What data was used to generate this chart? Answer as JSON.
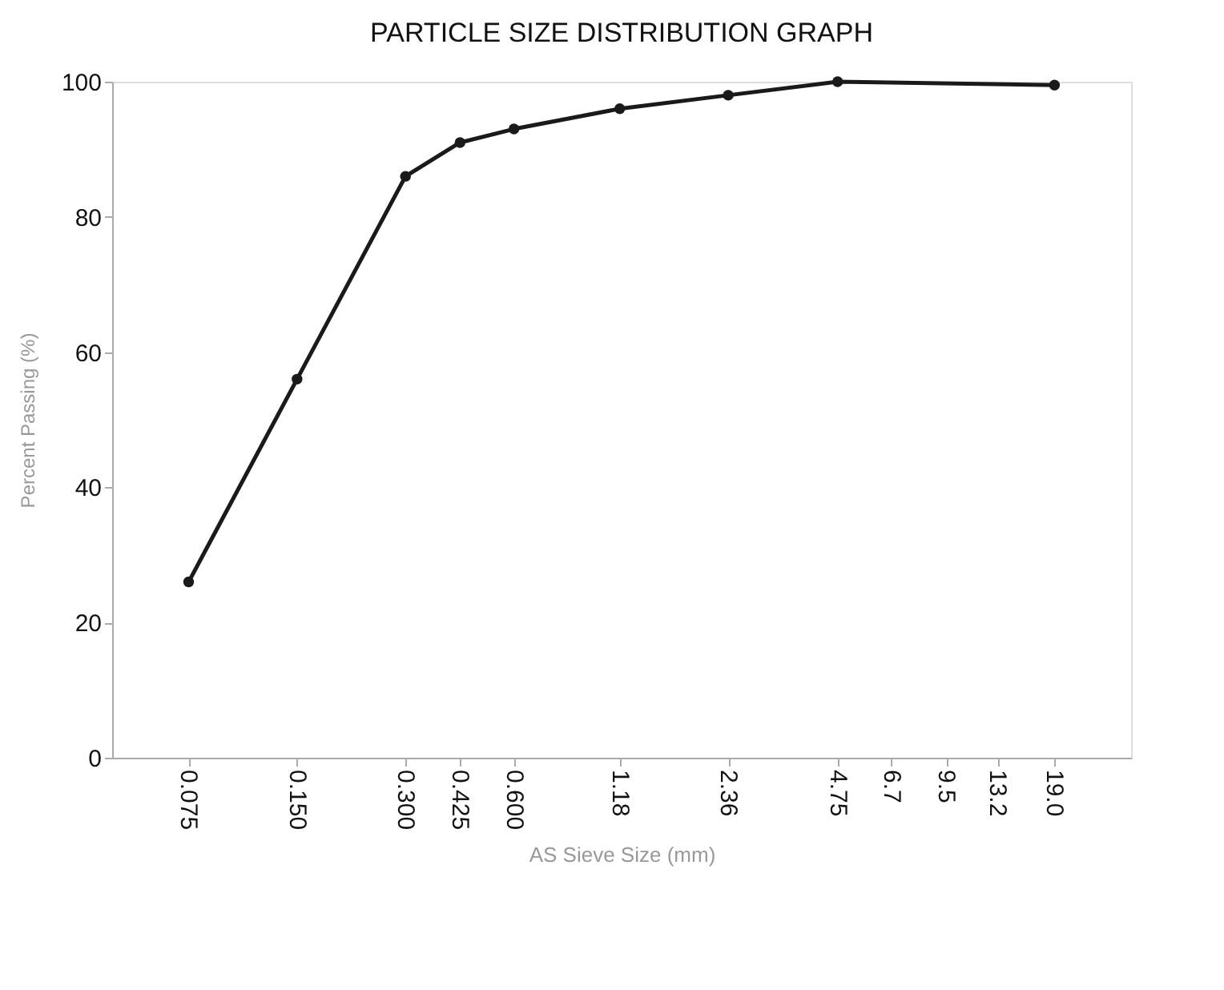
{
  "chart_data": {
    "type": "line",
    "title": "PARTICLE SIZE DISTRIBUTION GRAPH",
    "xlabel": "AS Sieve Size (mm)",
    "ylabel": "Percent Passing (%)",
    "x": [
      0.075,
      0.15,
      0.3,
      0.425,
      0.6,
      1.18,
      2.36,
      4.75,
      19.0
    ],
    "series": [
      {
        "color": "#1a1a1a",
        "values": [
          26,
          56,
          86,
          91,
          93,
          96,
          98,
          100,
          99.5
        ]
      }
    ],
    "log": "x",
    "xlim": [
      0.046,
      31
    ],
    "xticks": [
      0.075,
      {
        "value": 0.15,
        "label": "0.150"
      },
      {
        "value": 0.3,
        "label": "0.300"
      },
      0.425,
      {
        "value": 0.6,
        "label": "0.600"
      },
      1.18,
      2.36,
      4.75,
      6.7,
      9.5,
      13.2,
      {
        "value": 19.0,
        "label": "19.0"
      }
    ],
    "ylim": [
      0,
      100
    ],
    "yticks": [
      0,
      20,
      40,
      60,
      80,
      100
    ],
    "grid": false,
    "marker": "circle",
    "line_style": "solid"
  }
}
